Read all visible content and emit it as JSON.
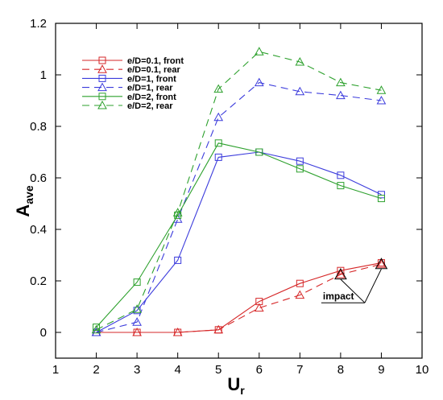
{
  "chart_data": {
    "type": "line",
    "xlabel": "U",
    "xlabel_sub": "r",
    "ylabel": "A",
    "ylabel_sub": "ave",
    "xlim": [
      1,
      10
    ],
    "ylim": [
      -0.1,
      1.2
    ],
    "xticks": [
      1,
      2,
      3,
      4,
      5,
      6,
      7,
      8,
      9,
      10
    ],
    "yticks": [
      0,
      0.2,
      0.4,
      0.6,
      0.8,
      1,
      1.2
    ],
    "ytick_labels": [
      "0",
      "0.2",
      "0.4",
      "0.6",
      "0.8",
      "1",
      "1.2"
    ],
    "grid": false,
    "legend_position": "top-left",
    "series": [
      {
        "name": "e/D=0.1, front",
        "color": "#d62728",
        "dash": "solid",
        "marker": "square",
        "x": [
          2,
          3,
          4,
          5,
          6,
          7,
          8,
          9
        ],
        "values": [
          0.0,
          0.0,
          0.0,
          0.01,
          0.12,
          0.19,
          0.24,
          0.27
        ]
      },
      {
        "name": "e/D=0.1, rear",
        "color": "#d62728",
        "dash": "dashed",
        "marker": "triangle",
        "x": [
          2,
          3,
          4,
          5,
          6,
          7,
          8,
          9
        ],
        "values": [
          0.0,
          0.0,
          0.0,
          0.01,
          0.095,
          0.145,
          0.225,
          0.265
        ]
      },
      {
        "name": "e/D=1, front",
        "color": "#3b3bdc",
        "dash": "solid",
        "marker": "square",
        "x": [
          2,
          3,
          4,
          5,
          6,
          7,
          8,
          9
        ],
        "values": [
          0.0,
          0.085,
          0.28,
          0.68,
          0.7,
          0.665,
          0.61,
          0.535
        ]
      },
      {
        "name": "e/D=1, rear",
        "color": "#3b3bdc",
        "dash": "dashed",
        "marker": "triangle",
        "x": [
          2,
          3,
          4,
          5,
          6,
          7,
          8,
          9
        ],
        "values": [
          0.0,
          0.04,
          0.44,
          0.835,
          0.97,
          0.935,
          0.92,
          0.9
        ]
      },
      {
        "name": "e/D=2, front",
        "color": "#2ca02c",
        "dash": "solid",
        "marker": "square",
        "x": [
          2,
          3,
          4,
          5,
          6,
          7,
          8,
          9
        ],
        "values": [
          0.02,
          0.195,
          0.455,
          0.735,
          0.7,
          0.635,
          0.57,
          0.52
        ]
      },
      {
        "name": "e/D=2, rear",
        "color": "#2ca02c",
        "dash": "dashed",
        "marker": "triangle",
        "x": [
          2,
          3,
          4,
          5,
          6,
          7,
          8,
          9
        ],
        "values": [
          0.01,
          0.09,
          0.465,
          0.945,
          1.09,
          1.05,
          0.97,
          0.94
        ]
      }
    ],
    "annotations": [
      {
        "text": "impact",
        "label_x": 8.0,
        "label_y": 0.115,
        "targets": [
          [
            8,
            0.225
          ],
          [
            9,
            0.265
          ]
        ]
      }
    ]
  }
}
